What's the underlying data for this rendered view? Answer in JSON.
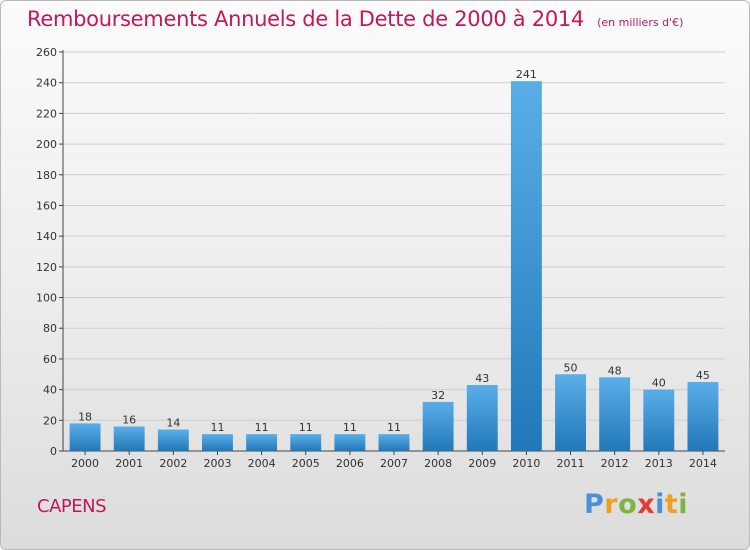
{
  "header": {
    "title": "Remboursements Annuels de la Dette de 2000 à 2014",
    "unit": "(en milliers d'€)"
  },
  "footer": {
    "city": "CAPENS",
    "logo_letters": [
      "P",
      "r",
      "o",
      "x",
      "i",
      "t",
      "i"
    ]
  },
  "colors": {
    "title": "#c2185b",
    "bar_top": "#5aaee8",
    "bar_bottom": "#2277b8"
  },
  "chart_data": {
    "type": "bar",
    "title": "Remboursements Annuels de la Dette de 2000 à 2014",
    "subtitle": "(en milliers d'€)",
    "xlabel": "",
    "ylabel": "",
    "categories": [
      "2000",
      "2001",
      "2002",
      "2003",
      "2004",
      "2005",
      "2006",
      "2007",
      "2008",
      "2009",
      "2010",
      "2011",
      "2012",
      "2013",
      "2014"
    ],
    "values": [
      18,
      16,
      14,
      11,
      11,
      11,
      11,
      11,
      32,
      43,
      241,
      50,
      48,
      40,
      45
    ],
    "ylim": [
      0,
      260
    ],
    "yticks": [
      0,
      20,
      40,
      60,
      80,
      100,
      120,
      140,
      160,
      180,
      200,
      220,
      240,
      260
    ],
    "grid": true,
    "data_labels": true
  }
}
